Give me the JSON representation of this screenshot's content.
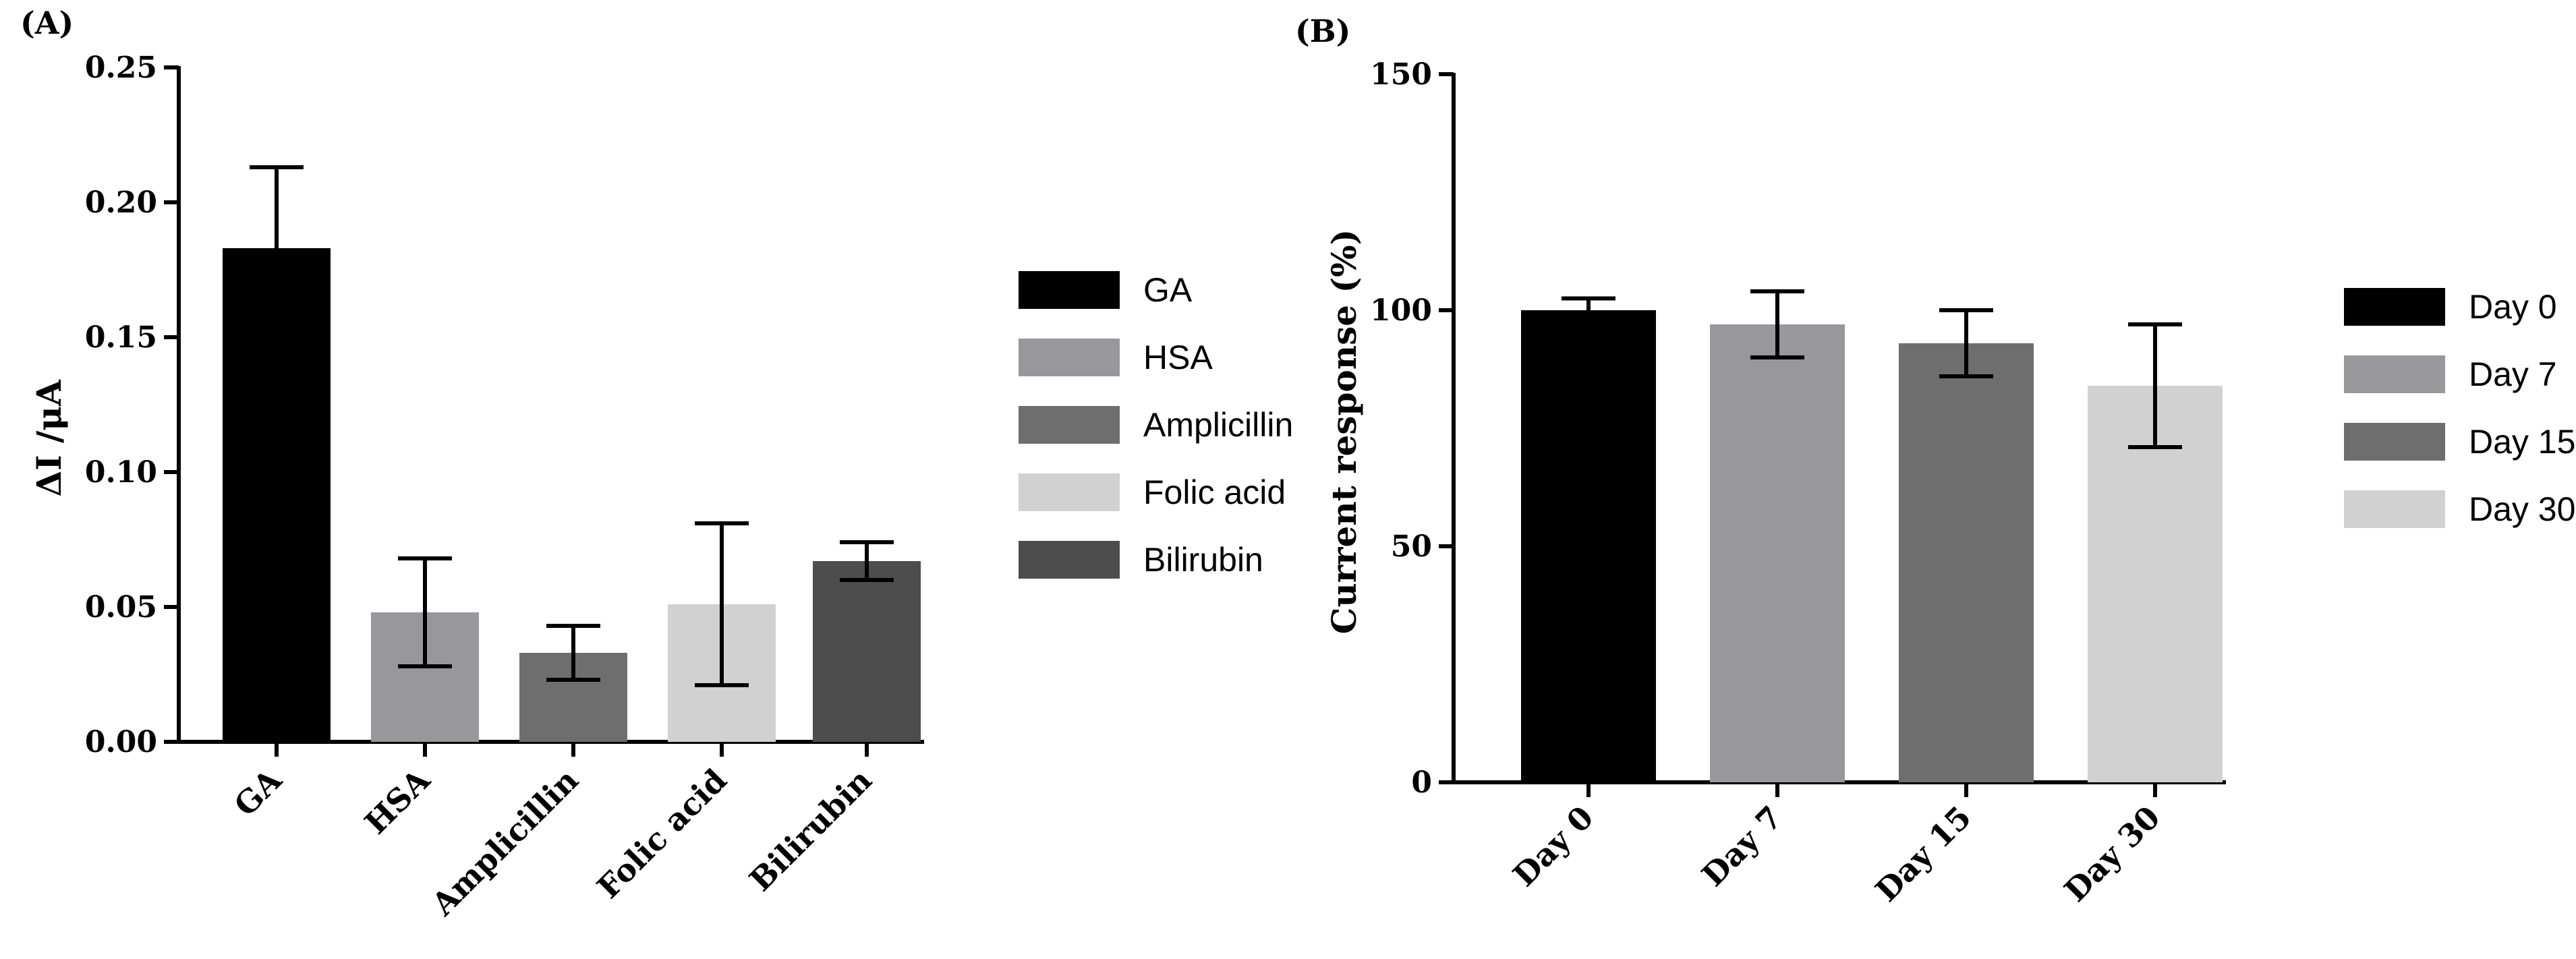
{
  "chart_data": [
    {
      "panel": "(A)",
      "type": "bar",
      "title": "",
      "xlabel": "",
      "ylabel": "ΔI /μA",
      "ylim": [
        0,
        0.25
      ],
      "yticks": [
        0.0,
        0.05,
        0.1,
        0.15,
        0.2,
        0.25
      ],
      "ytick_labels": [
        "0.00",
        "0.05",
        "0.10",
        "0.15",
        "0.20",
        "0.25"
      ],
      "categories": [
        "GA",
        "HSA",
        "Amplicillin",
        "Folic acid",
        "Bilirubin"
      ],
      "values": [
        0.183,
        0.048,
        0.033,
        0.051,
        0.067
      ],
      "errors": [
        0.03,
        0.02,
        0.01,
        0.03,
        0.007
      ],
      "colors": [
        "#000000",
        "#98979c",
        "#6e6e6e",
        "#d1d1d1",
        "#4d4d4d"
      ],
      "legend": [
        "GA",
        "HSA",
        "Amplicillin",
        "Folic acid",
        "Bilirubin"
      ],
      "legend_position": "right"
    },
    {
      "panel": "(B)",
      "type": "bar",
      "title": "",
      "xlabel": "",
      "ylabel": "Current response  (%)",
      "ylim": [
        0,
        150
      ],
      "yticks": [
        0,
        50,
        100,
        150
      ],
      "ytick_labels": [
        "0",
        "50",
        "100",
        "150"
      ],
      "categories": [
        "Day 0",
        "Day 7",
        "Day 15",
        "Day 30"
      ],
      "values": [
        100,
        97,
        93,
        84
      ],
      "errors": [
        2.5,
        7,
        7,
        13
      ],
      "colors": [
        "#000000",
        "#98979c",
        "#6e6e6e",
        "#d1d1d1"
      ],
      "legend": [
        "Day 0",
        "Day 7",
        "Day 15",
        "Day 30"
      ],
      "legend_position": "right"
    }
  ]
}
